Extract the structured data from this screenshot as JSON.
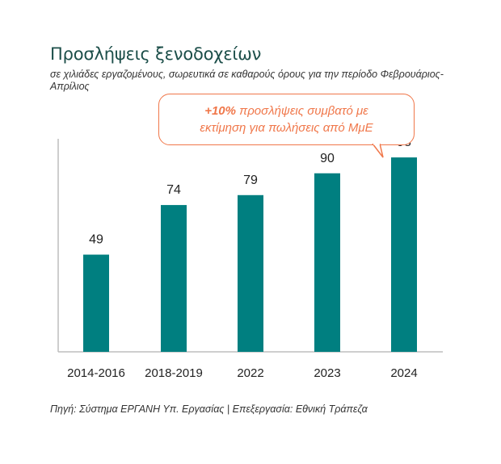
{
  "chart_data": {
    "type": "bar",
    "title": "Προσλήψεις ξενοδοχείων",
    "subtitle": "σε χιλιάδες εργαζομένους, σωρευτικά σε καθαρούς όρους για την περίοδο Φεβρουάριος-Απρίλιος",
    "categories": [
      "2014-2016",
      "2018-2019",
      "2022",
      "2023",
      "2024"
    ],
    "values": [
      49,
      74,
      79,
      90,
      98
    ],
    "ylim": [
      0,
      120
    ],
    "bar_color": "#007f80",
    "annotation": {
      "highlight": "+10%",
      "text_line1": " προσλήψεις συμβατό με",
      "text_line2": "εκτίμηση για πωλήσεις από ΜμΕ",
      "color": "#f0774a"
    },
    "source": "Πηγή: Σύστημα ΕΡΓΑΝΗ Υπ. Εργασίας | Επεξεργασία: Εθνική Τράπεζα"
  }
}
